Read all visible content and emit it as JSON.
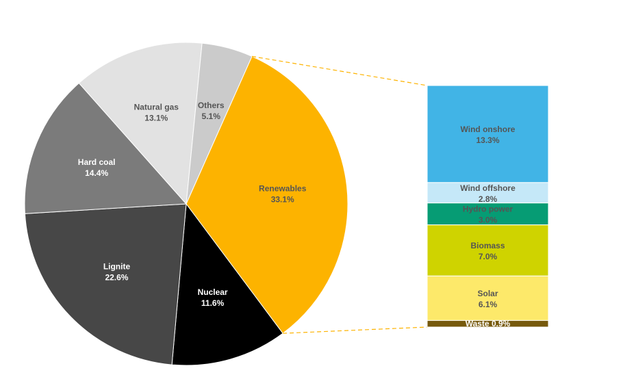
{
  "chart_data": {
    "type": "pie",
    "title": "",
    "slices": [
      {
        "label": "Renewables",
        "value": 33.1,
        "display": "33.1%",
        "color": "#fdb300",
        "text_color": "#555555"
      },
      {
        "label": "Nuclear",
        "value": 11.6,
        "display": "11.6%",
        "color": "#000000",
        "text_color": "#ffffff"
      },
      {
        "label": "Lignite",
        "value": 22.6,
        "display": "22.6%",
        "color": "#474747",
        "text_color": "#ffffff"
      },
      {
        "label": "Hard coal",
        "value": 14.4,
        "display": "14.4%",
        "color": "#7b7b7b",
        "text_color": "#ffffff"
      },
      {
        "label": "Natural gas",
        "value": 13.1,
        "display": "13.1%",
        "color": "#e2e2e2",
        "text_color": "#555555"
      },
      {
        "label": "Others",
        "value": 5.1,
        "display": "5.1%",
        "color": "#cbcbcb",
        "text_color": "#555555"
      }
    ],
    "breakdown": {
      "of": "Renewables",
      "type": "stacked-bar",
      "segments": [
        {
          "label": "Wind onshore",
          "value": 13.3,
          "display": "13.3%",
          "color": "#41b4e6",
          "text_color": "#555555"
        },
        {
          "label": "Wind offshore",
          "value": 2.8,
          "display": "2.8%",
          "color": "#c5e8f8",
          "text_color": "#555555"
        },
        {
          "label": "Hydro power",
          "value": 3.0,
          "display": "3.0%",
          "color": "#069c74",
          "text_color": "#555555"
        },
        {
          "label": "Biomass",
          "value": 7.0,
          "display": "7.0%",
          "color": "#cfd300",
          "text_color": "#555555"
        },
        {
          "label": "Solar",
          "value": 6.1,
          "display": "6.1%",
          "color": "#fde96a",
          "text_color": "#555555"
        },
        {
          "label": "Waste",
          "value": 0.9,
          "display": "0.9%",
          "color": "#775a0d",
          "text_color": "#ffffff"
        }
      ]
    },
    "connector_color": "#fdb300"
  }
}
